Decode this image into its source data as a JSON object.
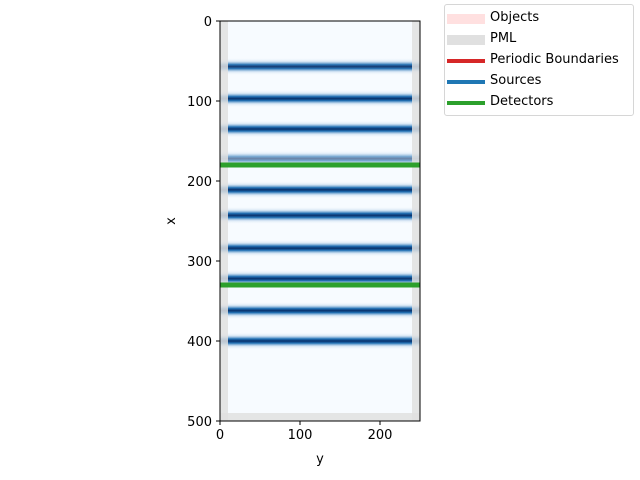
{
  "chart_data": {
    "type": "heatmap",
    "title": "",
    "xlabel": "y",
    "ylabel": "x",
    "xlim": [
      0,
      250
    ],
    "ylim": [
      500,
      0
    ],
    "x_ticks": [
      0,
      100,
      200
    ],
    "y_ticks": [
      0,
      100,
      200,
      300,
      400,
      500
    ],
    "colormap": "Blues",
    "field_region": {
      "x_from": 10,
      "x_to": 490
    },
    "field_bands": [
      {
        "x_center": 57,
        "intensity": 0.95
      },
      {
        "x_center": 97,
        "intensity": 1.0
      },
      {
        "x_center": 135,
        "intensity": 1.0
      },
      {
        "x_center": 172,
        "intensity": 0.6
      },
      {
        "x_center": 211,
        "intensity": 1.0
      },
      {
        "x_center": 243,
        "intensity": 1.0
      },
      {
        "x_center": 284,
        "intensity": 1.0
      },
      {
        "x_center": 322,
        "intensity": 1.0
      },
      {
        "x_center": 362,
        "intensity": 1.0
      },
      {
        "x_center": 400,
        "intensity": 1.0
      }
    ],
    "pml": {
      "thickness": 10,
      "color": "#e0e0e0"
    },
    "detectors": [
      {
        "x": 180,
        "color": "#2ca02c"
      },
      {
        "x": 330,
        "color": "#2ca02c"
      }
    ],
    "legend": {
      "placement": "outside-top-right",
      "entries": [
        {
          "label": "Objects",
          "color": "#ffe0e0"
        },
        {
          "label": "PML",
          "color": "#e0e0e0"
        },
        {
          "label": "Periodic Boundaries",
          "color": "#d62728"
        },
        {
          "label": "Sources",
          "color": "#1f77b4"
        },
        {
          "label": "Detectors",
          "color": "#2ca02c"
        }
      ]
    }
  }
}
